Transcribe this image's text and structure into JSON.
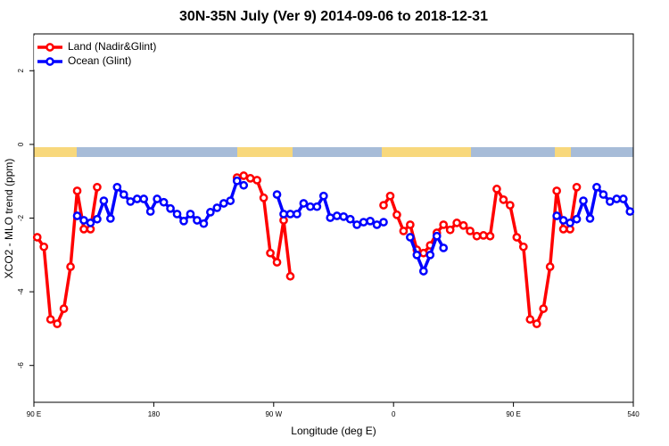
{
  "chart_data": {
    "type": "line",
    "title": "30N-35N July (Ver 9)   2014-09-06 to 2018-12-31",
    "x_label": "Longitude (deg E)",
    "y_label": "XCO2 - MLO trend (ppm)",
    "xlim": [
      90,
      540
    ],
    "xticks": [
      {
        "value": 90,
        "label": "90 E"
      },
      180,
      {
        "value": 270,
        "label": "90 W"
      },
      {
        "value": 360,
        "label": "0"
      },
      {
        "value": 450,
        "label": "90 E"
      },
      540
    ],
    "ylim": [
      -7,
      3
    ],
    "yticks": [
      -6,
      -4,
      -2,
      0,
      2
    ],
    "legend": "top-left",
    "series": [
      {
        "name": "Land (Nadir&Glint)",
        "color": "#ff0000",
        "x": [
          92.5,
          97.5,
          102.5,
          107.5,
          112.5,
          117.5,
          122.5,
          127.5,
          132.5,
          137.5,
          242.5,
          247.5,
          252.5,
          257.5,
          262.5,
          267.5,
          272.5,
          277.5,
          282.5,
          352.5,
          357.5,
          362.5,
          367.5,
          372.5,
          377.5,
          382.5,
          387.5,
          392.5,
          397.5,
          402.5,
          407.5,
          412.5,
          417.5,
          422.5,
          427.5,
          432.5,
          437.5,
          442.5,
          447.5,
          452.5,
          457.5,
          462.5,
          467.5,
          472.5,
          477.5,
          482.5,
          487.5,
          492.5,
          497.5
        ],
        "values": [
          -2.52,
          -2.78,
          -4.75,
          -4.87,
          -4.46,
          -3.32,
          -1.26,
          -2.3,
          -2.3,
          -1.16,
          -0.9,
          -0.85,
          -0.92,
          -0.97,
          -1.45,
          -2.95,
          -3.2,
          -2.06,
          -3.58,
          -1.65,
          -1.4,
          -1.91,
          -2.35,
          -2.18,
          -2.86,
          -2.95,
          -2.74,
          -2.4,
          -2.18,
          -2.32,
          -2.13,
          -2.2,
          -2.35,
          -2.49,
          -2.47,
          -2.49,
          -1.21,
          -1.5,
          -1.65,
          -2.52,
          -2.78,
          -4.75,
          -4.87,
          -4.46,
          -3.32,
          -1.26,
          -2.3,
          -2.3,
          -1.16
        ]
      },
      {
        "name": "Ocean (Glint)",
        "color": "#0000ff",
        "x": [
          122.5,
          127.5,
          132.5,
          137.5,
          142.5,
          147.5,
          152.5,
          157.5,
          162.5,
          167.5,
          172.5,
          177.5,
          182.5,
          187.5,
          192.5,
          197.5,
          202.5,
          207.5,
          212.5,
          217.5,
          222.5,
          227.5,
          232.5,
          237.5,
          242.5,
          247.5,
          272.5,
          277.5,
          282.5,
          287.5,
          292.5,
          297.5,
          302.5,
          307.5,
          312.5,
          317.5,
          322.5,
          327.5,
          332.5,
          337.5,
          342.5,
          347.5,
          352.5,
          372.5,
          377.5,
          382.5,
          387.5,
          392.5,
          397.5,
          482.5,
          487.5,
          492.5,
          497.5,
          502.5,
          507.5,
          512.5,
          517.5,
          522.5,
          527.5,
          532.5,
          537.5
        ],
        "values": [
          -1.94,
          -2.06,
          -2.13,
          -2.03,
          -1.53,
          -2.01,
          -1.16,
          -1.36,
          -1.55,
          -1.48,
          -1.48,
          -1.82,
          -1.48,
          -1.57,
          -1.74,
          -1.89,
          -2.08,
          -1.89,
          -2.06,
          -2.15,
          -1.84,
          -1.72,
          -1.6,
          -1.53,
          -0.99,
          -1.11,
          -1.36,
          -1.89,
          -1.89,
          -1.89,
          -1.6,
          -1.69,
          -1.69,
          -1.4,
          -1.99,
          -1.94,
          -1.96,
          -2.03,
          -2.18,
          -2.11,
          -2.08,
          -2.18,
          -2.11,
          -2.52,
          -3.0,
          -3.44,
          -3.0,
          -2.49,
          -2.81,
          -1.94,
          -2.06,
          -2.13,
          -2.03,
          -1.53,
          -2.01,
          -1.16,
          -1.36,
          -1.55,
          -1.48,
          -1.48,
          -1.82
        ]
      }
    ]
  }
}
